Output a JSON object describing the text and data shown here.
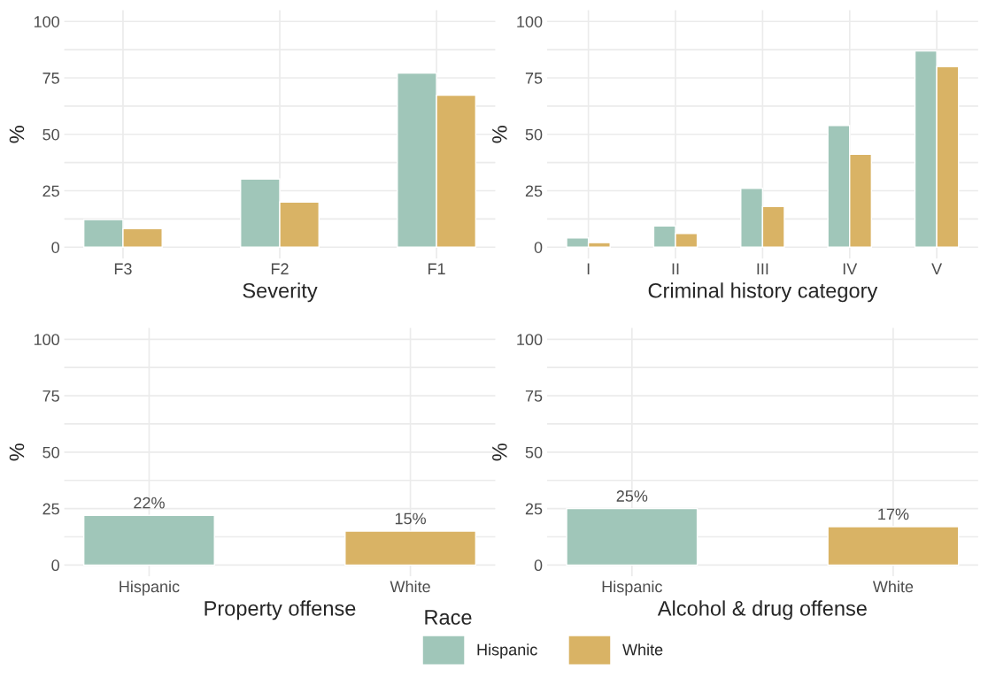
{
  "chart_data": [
    {
      "type": "bar",
      "xlabel": "Severity",
      "ylabel": "%",
      "categories": [
        "F3",
        "F2",
        "F1"
      ],
      "series": [
        {
          "name": "Hispanic",
          "color": "#a0c6b9",
          "values": [
            12.2,
            30.2,
            77.1
          ]
        },
        {
          "name": "White",
          "color": "#d9b365",
          "values": [
            8.2,
            20,
            67.3
          ]
        }
      ],
      "ylim": [
        -5,
        105
      ],
      "yticks": [
        0,
        {
          "value": 12.5,
          "label": null
        },
        25,
        {
          "value": 37.5,
          "label": null
        },
        50,
        {
          "value": 62.5,
          "label": null
        },
        75,
        {
          "value": 87.5,
          "label": null
        },
        100
      ],
      "grid": true,
      "legend": "bottom",
      "legend_title": "Race"
    },
    {
      "type": "bar",
      "xlabel": "Criminal history category",
      "ylabel": "%",
      "categories": [
        "I",
        "II",
        "III",
        "IV",
        "V"
      ],
      "series": [
        {
          "color": "#a0c6b9",
          "values": [
            4.1,
            9.4,
            26.1,
            53.9,
            86.9
          ]
        },
        {
          "color": "#d9b365",
          "values": [
            2,
            6.1,
            18,
            41.2,
            80
          ]
        }
      ],
      "ylim": [
        -5,
        105
      ],
      "yticks": [
        0,
        {
          "value": 12.5,
          "label": null
        },
        25,
        {
          "value": 37.5,
          "label": null
        },
        50,
        {
          "value": 62.5,
          "label": null
        },
        75,
        {
          "value": 87.5,
          "label": null
        },
        100
      ],
      "grid": true
    },
    {
      "type": "bar",
      "xlabel": "Property offense",
      "ylabel": "%",
      "categories": [
        "Hispanic",
        "White"
      ],
      "values": [
        22,
        15
      ],
      "colors": [
        "#a0c6b9",
        "#d9b365"
      ],
      "value_labels": [
        "22%",
        "15%"
      ],
      "ylim": [
        -5,
        105
      ],
      "yticks": [
        0,
        {
          "value": 12.5,
          "label": null
        },
        25,
        {
          "value": 37.5,
          "label": null
        },
        50,
        {
          "value": 62.5,
          "label": null
        },
        75,
        {
          "value": 87.5,
          "label": null
        },
        100
      ],
      "grid": true
    },
    {
      "type": "bar",
      "xlabel": "Alcohol & drug offense",
      "ylabel": "%",
      "categories": [
        "Hispanic",
        "White"
      ],
      "values": [
        25,
        17
      ],
      "colors": [
        "#a0c6b9",
        "#d9b365"
      ],
      "value_labels": [
        "25%",
        "17%"
      ],
      "ylim": [
        -5,
        105
      ],
      "yticks": [
        0,
        {
          "value": 12.5,
          "label": null
        },
        25,
        {
          "value": 37.5,
          "label": null
        },
        50,
        {
          "value": 62.5,
          "label": null
        },
        75,
        {
          "value": 87.5,
          "label": null
        },
        100
      ],
      "grid": true
    }
  ]
}
